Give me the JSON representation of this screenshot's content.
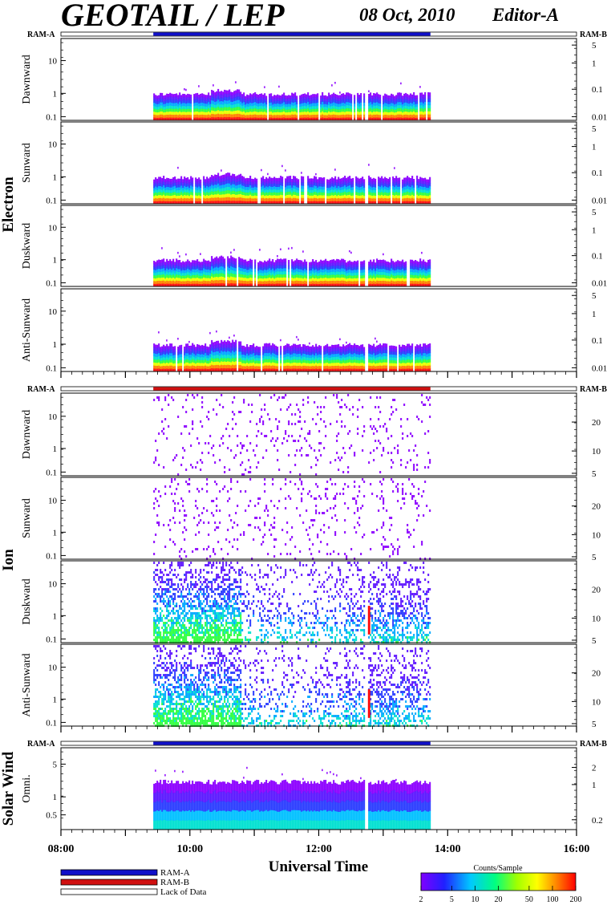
{
  "header": {
    "title": "GEOTAIL / LEP",
    "date": "08 Oct, 2010",
    "editor": "Editor-A"
  },
  "colors": {
    "ram_a": "#1010c8",
    "ram_b": "#d01010",
    "lack_of_data": "#ffffff"
  },
  "legend": {
    "ram_a_label": "RAM-A",
    "ram_b_label": "RAM-B",
    "lack_label": "Lack of Data"
  },
  "colorbar": {
    "title": "Counts/Sample",
    "tick_labels": [
      "2",
      "5",
      "10",
      "20",
      "50",
      "100",
      "200"
    ],
    "range": [
      2,
      200
    ],
    "scale": "log"
  },
  "chart_data": {
    "type": "heatmap",
    "xlabel": "Universal Time",
    "x_tick_labels": [
      "08:00",
      "10:00",
      "12:00",
      "14:00",
      "16:00"
    ],
    "xlim": [
      "08:00",
      "16:00"
    ],
    "data_coverage": [
      "09:26",
      "13:44"
    ],
    "data_gap": [
      "12:42",
      "12:45"
    ],
    "groups": [
      {
        "name": "Electron",
        "mode_left": "RAM-A",
        "mode_right": "RAM-B",
        "mode_coverage": [
          "09:26",
          "13:44"
        ],
        "mode_color": "ram_a",
        "panels": [
          {
            "name": "Dawnward",
            "left_ticks": [
              "10",
              "1",
              "0.1"
            ],
            "right_ticks": [
              "5",
              "1",
              "0.1",
              "0.01"
            ]
          },
          {
            "name": "Sunward",
            "left_ticks": [
              "10",
              "1",
              "0.1"
            ],
            "right_ticks": [
              "5",
              "1",
              "0.1",
              "0.01"
            ]
          },
          {
            "name": "Duskward",
            "left_ticks": [
              "10",
              "1",
              "0.1"
            ],
            "right_ticks": [
              "5",
              "1",
              "0.1",
              "0.01"
            ]
          },
          {
            "name": "Anti-Sunward",
            "left_ticks": [
              "10",
              "1",
              "0.1"
            ],
            "right_ticks": [
              "5",
              "1",
              "0.1",
              "0.01"
            ]
          }
        ]
      },
      {
        "name": "Ion",
        "mode_left": "RAM-A",
        "mode_right": "RAM-B",
        "mode_coverage": [
          "09:26",
          "13:44"
        ],
        "mode_color": "ram_b",
        "panels": [
          {
            "name": "Dawnward",
            "left_ticks": [
              "10",
              "1",
              "0.1"
            ],
            "right_ticks": [
              "20",
              "10",
              "5"
            ]
          },
          {
            "name": "Sunward",
            "left_ticks": [
              "10",
              "1",
              "0.1"
            ],
            "right_ticks": [
              "20",
              "10",
              "5"
            ]
          },
          {
            "name": "Duskward",
            "left_ticks": [
              "10",
              "1",
              "0.1"
            ],
            "right_ticks": [
              "20",
              "10",
              "5"
            ]
          },
          {
            "name": "Anti-Sunward",
            "left_ticks": [
              "10",
              "1",
              "0.1"
            ],
            "right_ticks": [
              "20",
              "10",
              "5"
            ]
          }
        ]
      },
      {
        "name": "Solar Wind",
        "mode_left": "RAM-A",
        "mode_right": "RAM-B",
        "mode_coverage": [
          "09:26",
          "13:44"
        ],
        "mode_color": "ram_a",
        "panels": [
          {
            "name": "Omni.",
            "left_ticks": [
              "5",
              "1",
              "0.5"
            ],
            "right_ticks": [
              "2",
              "1",
              "0.2"
            ]
          }
        ]
      }
    ]
  }
}
